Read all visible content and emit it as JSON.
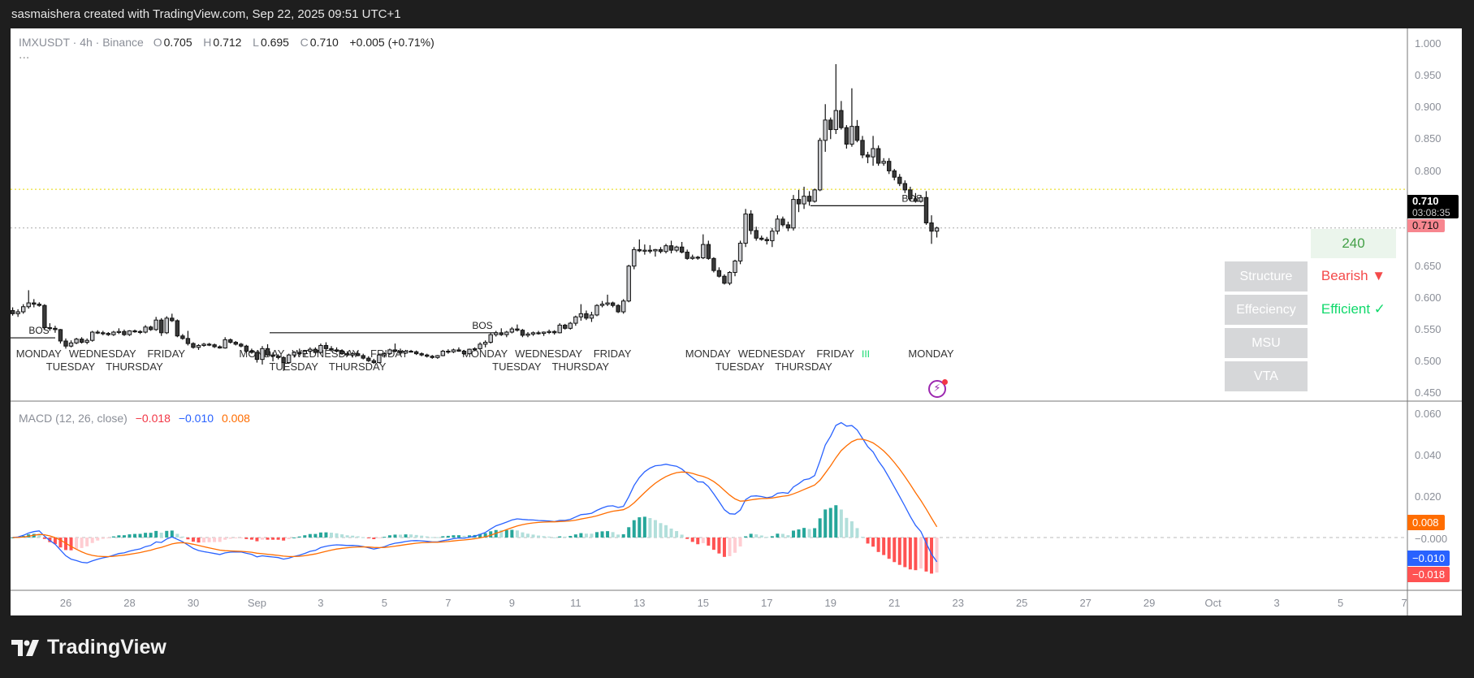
{
  "header": {
    "title": "sasmaishera created with TradingView.com, Sep 22, 2025 09:51 UTC+1"
  },
  "legend": {
    "symbol": "IMXUSDT · 4h · Binance",
    "o_label": "O",
    "open": "0.705",
    "h_label": "H",
    "high": "0.712",
    "l_label": "L",
    "low": "0.695",
    "c_label": "C",
    "close": "0.710",
    "change": "+0.005 (+0.71%)",
    "more": "···"
  },
  "macd_legend": {
    "title": "MACD (12, 26, close)",
    "hist": "−0.018",
    "macd": "−0.010",
    "signal": "0.008"
  },
  "price_axis": {
    "ticks": [
      "1.000",
      "0.950",
      "0.900",
      "0.850",
      "0.800",
      "0.650",
      "0.600",
      "0.550",
      "0.500",
      "0.450"
    ],
    "last_price": "0.710",
    "countdown": "03:08:35",
    "close_tag": "0.710"
  },
  "macd_axis": {
    "ticks": [
      "0.060",
      "0.040",
      "0.020",
      "−0.000"
    ],
    "signal_tag": "0.008",
    "macd_tag": "−0.010",
    "hist_tag": "−0.018"
  },
  "time_axis": {
    "ticks": [
      "26",
      "28",
      "30",
      "Sep",
      "3",
      "5",
      "7",
      "9",
      "11",
      "13",
      "15",
      "17",
      "19",
      "21",
      "23",
      "25",
      "27",
      "29",
      "Oct",
      "3",
      "5",
      "7"
    ]
  },
  "widget": {
    "timeframe": "240",
    "rows": [
      {
        "label": "Structure",
        "value": "Bearish ▼",
        "color": "#f44a4a"
      },
      {
        "label": "Effeciency",
        "value": "Efficient ✓",
        "color": "#10d96b"
      },
      {
        "label": "MSU",
        "value": ""
      },
      {
        "label": "VTA",
        "value": ""
      }
    ]
  },
  "annotations": {
    "bos": [
      "BOS",
      "BOS",
      "BOS"
    ],
    "weekdays": [
      "MONDAY",
      "TUESDAY",
      "WEDNESDAY",
      "THURSDAY",
      "FRIDAY"
    ],
    "marker": "III"
  },
  "footer": {
    "brand": "TradingView"
  },
  "colors": {
    "up": "#c8c9cd",
    "down": "#3a3a3a",
    "macd": "#2962ff",
    "signal": "#ff6d00",
    "hist_up_strong": "#26a69a",
    "hist_up_weak": "#b2dfdb",
    "hist_down_strong": "#ff5252",
    "hist_down_weak": "#ffcdd2",
    "swing_level": "#e6d600"
  },
  "chart_data": {
    "type": "candlestick",
    "symbol": "IMXUSDT",
    "interval": "4h",
    "exchange": "Binance",
    "start": "2025-08-24 08:00",
    "price_range": [
      0.45,
      1.0
    ],
    "macd_range": [
      -0.02,
      0.06
    ],
    "macd_params": [
      12,
      26,
      9
    ],
    "bos_levels": [
      0.537,
      0.545,
      0.745
    ],
    "swing_level": 0.771,
    "ohlc": [
      [
        0.58,
        0.585,
        0.572,
        0.575
      ],
      [
        0.575,
        0.582,
        0.57,
        0.578
      ],
      [
        0.578,
        0.59,
        0.575,
        0.586
      ],
      [
        0.586,
        0.612,
        0.583,
        0.592
      ],
      [
        0.592,
        0.598,
        0.585,
        0.59
      ],
      [
        0.59,
        0.593,
        0.586,
        0.588
      ],
      [
        0.588,
        0.59,
        0.55,
        0.553
      ],
      [
        0.553,
        0.56,
        0.548,
        0.552
      ],
      [
        0.552,
        0.556,
        0.545,
        0.55
      ],
      [
        0.55,
        0.551,
        0.528,
        0.532
      ],
      [
        0.532,
        0.536,
        0.52,
        0.524
      ],
      [
        0.524,
        0.533,
        0.522,
        0.529
      ],
      [
        0.529,
        0.537,
        0.527,
        0.535
      ],
      [
        0.535,
        0.538,
        0.528,
        0.53
      ],
      [
        0.53,
        0.536,
        0.527,
        0.533
      ],
      [
        0.533,
        0.548,
        0.531,
        0.546
      ],
      [
        0.546,
        0.549,
        0.543,
        0.545
      ],
      [
        0.545,
        0.548,
        0.541,
        0.544
      ],
      [
        0.544,
        0.546,
        0.54,
        0.542
      ],
      [
        0.542,
        0.548,
        0.54,
        0.546
      ],
      [
        0.546,
        0.552,
        0.543,
        0.547
      ],
      [
        0.547,
        0.55,
        0.54,
        0.542
      ],
      [
        0.542,
        0.549,
        0.54,
        0.548
      ],
      [
        0.548,
        0.55,
        0.545,
        0.547
      ],
      [
        0.547,
        0.549,
        0.543,
        0.546
      ],
      [
        0.546,
        0.557,
        0.544,
        0.554
      ],
      [
        0.554,
        0.556,
        0.548,
        0.55
      ],
      [
        0.55,
        0.57,
        0.548,
        0.565
      ],
      [
        0.565,
        0.568,
        0.54,
        0.545
      ],
      [
        0.545,
        0.571,
        0.543,
        0.568
      ],
      [
        0.568,
        0.575,
        0.562,
        0.564
      ],
      [
        0.564,
        0.566,
        0.538,
        0.54
      ],
      [
        0.54,
        0.543,
        0.534,
        0.536
      ],
      [
        0.536,
        0.548,
        0.525,
        0.528
      ],
      [
        0.528,
        0.53,
        0.52,
        0.522
      ],
      [
        0.522,
        0.527,
        0.518,
        0.525
      ],
      [
        0.525,
        0.529,
        0.523,
        0.527
      ],
      [
        0.527,
        0.529,
        0.524,
        0.526
      ],
      [
        0.526,
        0.528,
        0.521,
        0.523
      ],
      [
        0.523,
        0.525,
        0.52,
        0.521
      ],
      [
        0.521,
        0.538,
        0.52,
        0.534
      ],
      [
        0.534,
        0.536,
        0.528,
        0.53
      ],
      [
        0.53,
        0.532,
        0.525,
        0.527
      ],
      [
        0.527,
        0.529,
        0.522,
        0.524
      ],
      [
        0.524,
        0.526,
        0.513,
        0.516
      ],
      [
        0.516,
        0.52,
        0.512,
        0.514
      ],
      [
        0.514,
        0.516,
        0.498,
        0.503
      ],
      [
        0.503,
        0.524,
        0.495,
        0.52
      ],
      [
        0.52,
        0.527,
        0.508,
        0.51
      ],
      [
        0.51,
        0.514,
        0.5,
        0.508
      ],
      [
        0.508,
        0.511,
        0.503,
        0.506
      ],
      [
        0.506,
        0.508,
        0.485,
        0.498
      ],
      [
        0.498,
        0.512,
        0.497,
        0.51
      ],
      [
        0.51,
        0.516,
        0.506,
        0.514
      ],
      [
        0.514,
        0.52,
        0.51,
        0.512
      ],
      [
        0.512,
        0.518,
        0.508,
        0.516
      ],
      [
        0.516,
        0.522,
        0.512,
        0.519
      ],
      [
        0.519,
        0.522,
        0.512,
        0.514
      ],
      [
        0.514,
        0.528,
        0.512,
        0.525
      ],
      [
        0.525,
        0.53,
        0.518,
        0.52
      ],
      [
        0.52,
        0.524,
        0.515,
        0.518
      ],
      [
        0.518,
        0.522,
        0.514,
        0.516
      ],
      [
        0.516,
        0.519,
        0.51,
        0.512
      ],
      [
        0.512,
        0.516,
        0.508,
        0.51
      ],
      [
        0.51,
        0.515,
        0.506,
        0.512
      ],
      [
        0.512,
        0.516,
        0.508,
        0.509
      ],
      [
        0.509,
        0.512,
        0.503,
        0.505
      ],
      [
        0.505,
        0.508,
        0.499,
        0.501
      ],
      [
        0.501,
        0.504,
        0.496,
        0.498
      ],
      [
        0.498,
        0.512,
        0.497,
        0.51
      ],
      [
        0.51,
        0.514,
        0.506,
        0.512
      ],
      [
        0.512,
        0.52,
        0.51,
        0.518
      ],
      [
        0.518,
        0.528,
        0.514,
        0.516
      ],
      [
        0.516,
        0.52,
        0.51,
        0.513
      ],
      [
        0.513,
        0.518,
        0.512,
        0.516
      ],
      [
        0.516,
        0.518,
        0.514,
        0.515
      ],
      [
        0.515,
        0.517,
        0.51,
        0.512
      ],
      [
        0.512,
        0.514,
        0.508,
        0.51
      ],
      [
        0.51,
        0.512,
        0.506,
        0.508
      ],
      [
        0.508,
        0.51,
        0.504,
        0.506
      ],
      [
        0.506,
        0.51,
        0.504,
        0.509
      ],
      [
        0.509,
        0.518,
        0.508,
        0.516
      ],
      [
        0.516,
        0.519,
        0.512,
        0.515
      ],
      [
        0.515,
        0.52,
        0.513,
        0.518
      ],
      [
        0.518,
        0.522,
        0.515,
        0.516
      ],
      [
        0.516,
        0.518,
        0.51,
        0.512
      ],
      [
        0.512,
        0.52,
        0.511,
        0.519
      ],
      [
        0.519,
        0.522,
        0.516,
        0.52
      ],
      [
        0.52,
        0.53,
        0.518,
        0.527
      ],
      [
        0.527,
        0.533,
        0.522,
        0.53
      ],
      [
        0.53,
        0.545,
        0.528,
        0.542
      ],
      [
        0.542,
        0.548,
        0.539,
        0.545
      ],
      [
        0.545,
        0.552,
        0.54,
        0.542
      ],
      [
        0.542,
        0.548,
        0.538,
        0.546
      ],
      [
        0.546,
        0.554,
        0.544,
        0.551
      ],
      [
        0.551,
        0.558,
        0.547,
        0.549
      ],
      [
        0.549,
        0.551,
        0.538,
        0.541
      ],
      [
        0.541,
        0.546,
        0.538,
        0.543
      ],
      [
        0.543,
        0.547,
        0.54,
        0.545
      ],
      [
        0.545,
        0.548,
        0.542,
        0.544
      ],
      [
        0.544,
        0.547,
        0.54,
        0.546
      ],
      [
        0.546,
        0.55,
        0.543,
        0.547
      ],
      [
        0.547,
        0.549,
        0.542,
        0.545
      ],
      [
        0.545,
        0.56,
        0.544,
        0.557
      ],
      [
        0.557,
        0.559,
        0.55,
        0.552
      ],
      [
        0.552,
        0.562,
        0.55,
        0.56
      ],
      [
        0.56,
        0.572,
        0.556,
        0.57
      ],
      [
        0.57,
        0.59,
        0.564,
        0.575
      ],
      [
        0.575,
        0.58,
        0.565,
        0.568
      ],
      [
        0.568,
        0.578,
        0.562,
        0.573
      ],
      [
        0.573,
        0.59,
        0.571,
        0.588
      ],
      [
        0.588,
        0.595,
        0.585,
        0.59
      ],
      [
        0.59,
        0.605,
        0.587,
        0.592
      ],
      [
        0.592,
        0.594,
        0.585,
        0.588
      ],
      [
        0.588,
        0.59,
        0.576,
        0.578
      ],
      [
        0.578,
        0.598,
        0.575,
        0.595
      ],
      [
        0.595,
        0.652,
        0.593,
        0.65
      ],
      [
        0.65,
        0.68,
        0.645,
        0.676
      ],
      [
        0.676,
        0.692,
        0.672,
        0.674
      ],
      [
        0.674,
        0.684,
        0.668,
        0.675
      ],
      [
        0.675,
        0.683,
        0.67,
        0.674
      ],
      [
        0.674,
        0.677,
        0.665,
        0.676
      ],
      [
        0.676,
        0.68,
        0.67,
        0.673
      ],
      [
        0.673,
        0.685,
        0.67,
        0.682
      ],
      [
        0.682,
        0.69,
        0.67,
        0.675
      ],
      [
        0.675,
        0.682,
        0.672,
        0.68
      ],
      [
        0.68,
        0.688,
        0.67,
        0.672
      ],
      [
        0.672,
        0.676,
        0.66,
        0.662
      ],
      [
        0.662,
        0.668,
        0.66,
        0.664
      ],
      [
        0.664,
        0.666,
        0.66,
        0.663
      ],
      [
        0.663,
        0.7,
        0.661,
        0.684
      ],
      [
        0.684,
        0.69,
        0.66,
        0.662
      ],
      [
        0.662,
        0.664,
        0.64,
        0.643
      ],
      [
        0.643,
        0.648,
        0.632,
        0.634
      ],
      [
        0.634,
        0.637,
        0.621,
        0.623
      ],
      [
        0.623,
        0.642,
        0.62,
        0.64
      ],
      [
        0.64,
        0.66,
        0.634,
        0.658
      ],
      [
        0.658,
        0.69,
        0.653,
        0.686
      ],
      [
        0.686,
        0.74,
        0.68,
        0.732
      ],
      [
        0.732,
        0.738,
        0.7,
        0.706
      ],
      [
        0.706,
        0.712,
        0.69,
        0.694
      ],
      [
        0.694,
        0.698,
        0.69,
        0.692
      ],
      [
        0.692,
        0.696,
        0.684,
        0.69
      ],
      [
        0.69,
        0.71,
        0.68,
        0.705
      ],
      [
        0.705,
        0.73,
        0.7,
        0.724
      ],
      [
        0.724,
        0.728,
        0.712,
        0.715
      ],
      [
        0.715,
        0.72,
        0.705,
        0.71
      ],
      [
        0.71,
        0.762,
        0.706,
        0.755
      ],
      [
        0.755,
        0.77,
        0.735,
        0.748
      ],
      [
        0.748,
        0.775,
        0.74,
        0.76
      ],
      [
        0.76,
        0.768,
        0.745,
        0.752
      ],
      [
        0.752,
        0.772,
        0.75,
        0.77
      ],
      [
        0.77,
        0.852,
        0.768,
        0.848
      ],
      [
        0.848,
        0.905,
        0.83,
        0.88
      ],
      [
        0.88,
        0.884,
        0.85,
        0.865
      ],
      [
        0.865,
        0.968,
        0.858,
        0.895
      ],
      [
        0.895,
        0.91,
        0.865,
        0.868
      ],
      [
        0.868,
        0.872,
        0.835,
        0.842
      ],
      [
        0.842,
        0.93,
        0.838,
        0.87
      ],
      [
        0.87,
        0.88,
        0.845,
        0.848
      ],
      [
        0.848,
        0.855,
        0.82,
        0.825
      ],
      [
        0.825,
        0.83,
        0.812,
        0.822
      ],
      [
        0.822,
        0.855,
        0.808,
        0.835
      ],
      [
        0.835,
        0.84,
        0.808,
        0.812
      ],
      [
        0.812,
        0.82,
        0.808,
        0.815
      ],
      [
        0.815,
        0.82,
        0.795,
        0.8
      ],
      [
        0.8,
        0.803,
        0.785,
        0.79
      ],
      [
        0.79,
        0.795,
        0.776,
        0.78
      ],
      [
        0.78,
        0.785,
        0.765,
        0.77
      ],
      [
        0.77,
        0.775,
        0.752,
        0.756
      ],
      [
        0.756,
        0.765,
        0.75,
        0.752
      ],
      [
        0.752,
        0.762,
        0.75,
        0.758
      ],
      [
        0.758,
        0.768,
        0.715,
        0.718
      ],
      [
        0.718,
        0.73,
        0.685,
        0.705
      ],
      [
        0.705,
        0.712,
        0.695,
        0.71
      ]
    ]
  }
}
